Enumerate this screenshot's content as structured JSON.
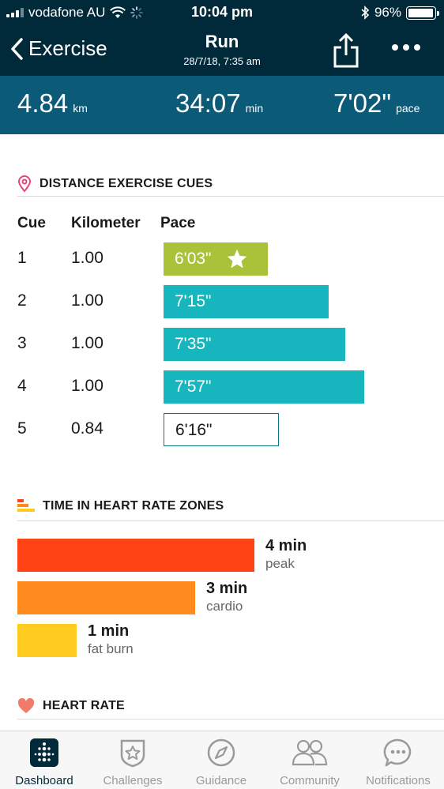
{
  "status_bar": {
    "carrier": "vodafone AU",
    "time": "10:04 pm",
    "battery": "96%",
    "battery_level": 0.96
  },
  "nav": {
    "back_label": "Exercise",
    "title": "Run",
    "subtitle": "28/7/18, 7:35 am"
  },
  "summary": {
    "distance": "4.84",
    "distance_unit": "km",
    "duration": "34:07",
    "duration_unit": "min",
    "pace": "7'02\"",
    "pace_unit": "pace"
  },
  "cues": {
    "section_title": "DISTANCE EXERCISE CUES",
    "headers": {
      "cue": "Cue",
      "kilometer": "Kilometer",
      "pace": "Pace"
    },
    "rows": [
      {
        "cue": "1",
        "km": "1.00",
        "pace": "6'03\"",
        "pace_seconds": 363,
        "style": "best"
      },
      {
        "cue": "2",
        "km": "1.00",
        "pace": "7'15\"",
        "pace_seconds": 435,
        "style": "std"
      },
      {
        "cue": "3",
        "km": "1.00",
        "pace": "7'35\"",
        "pace_seconds": 455,
        "style": "std"
      },
      {
        "cue": "4",
        "km": "1.00",
        "pace": "7'57\"",
        "pace_seconds": 477,
        "style": "std"
      },
      {
        "cue": "5",
        "km": "0.84",
        "pace": "6'16\"",
        "pace_seconds": 376,
        "style": "partial"
      }
    ],
    "best_color": "#a8c23a",
    "std_color": "#17b5be"
  },
  "zones": {
    "section_title": "TIME IN HEART RATE ZONES",
    "items": [
      {
        "minutes_label": "4 min",
        "name": "peak",
        "minutes": 4,
        "color": "#ff4314"
      },
      {
        "minutes_label": "3 min",
        "name": "cardio",
        "minutes": 3,
        "color": "#ff8a1e"
      },
      {
        "minutes_label": "1 min",
        "name": "fat burn",
        "minutes": 1,
        "color": "#ffcb1f"
      }
    ]
  },
  "heart_rate": {
    "section_title": "HEART RATE"
  },
  "tabs": [
    {
      "label": "Dashboard",
      "icon": "dashboard-icon",
      "active": true
    },
    {
      "label": "Challenges",
      "icon": "challenges-icon",
      "active": false
    },
    {
      "label": "Guidance",
      "icon": "compass-icon",
      "active": false
    },
    {
      "label": "Community",
      "icon": "community-icon",
      "active": false
    },
    {
      "label": "Notifications",
      "icon": "notifications-icon",
      "active": false
    }
  ]
}
